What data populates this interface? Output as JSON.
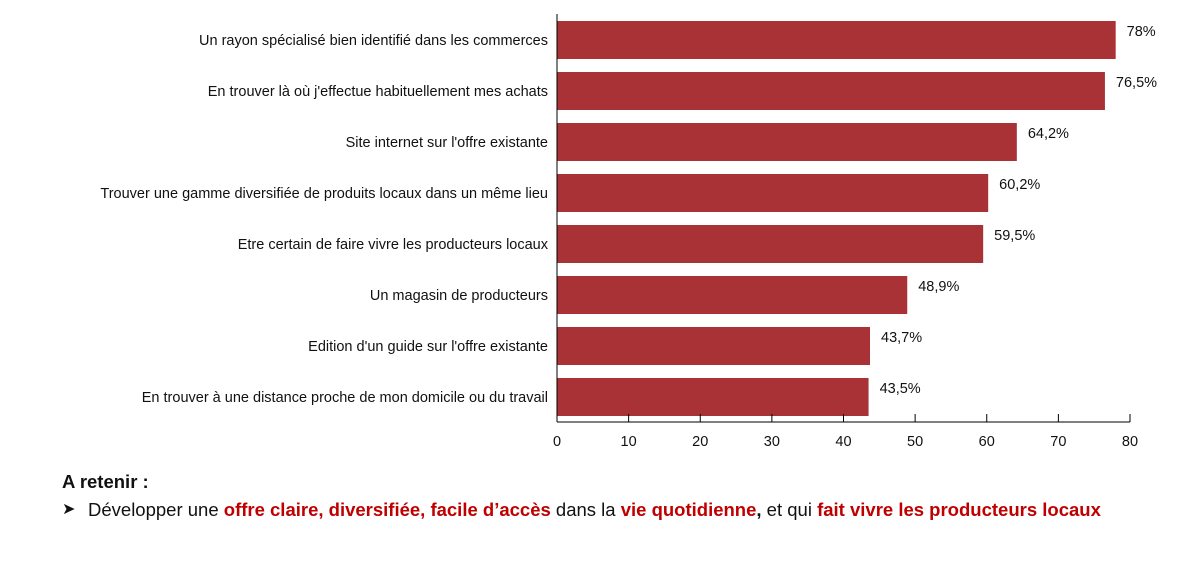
{
  "chart_data": {
    "type": "bar",
    "orientation": "horizontal",
    "bar_color": "#a83236",
    "categories": [
      "Un rayon spécialisé bien identifié dans les commerces",
      "En trouver là où j'effectue habituellement mes achats",
      "Site internet sur l'offre existante",
      "Trouver une gamme diversifiée de produits locaux dans un même lieu",
      "Etre certain de faire vivre les producteurs locaux",
      "Un magasin de producteurs",
      "Edition d'un guide sur l'offre existante",
      "En trouver à une distance proche de mon domicile ou du travail"
    ],
    "values": [
      78,
      76.5,
      64.2,
      60.2,
      59.5,
      48.9,
      43.7,
      43.5
    ],
    "value_labels": [
      "78%",
      "76,5%",
      "64,2%",
      "60,2%",
      "59,5%",
      "48,9%",
      "43,7%",
      "43,5%"
    ],
    "xlim": [
      0,
      80
    ],
    "xticks": [
      0,
      10,
      20,
      30,
      40,
      50,
      60,
      70,
      80
    ],
    "grid": false
  },
  "note": {
    "title": "A retenir :",
    "p1": "Développer une ",
    "hl1": "offre claire, diversifiée, facile d’accès",
    "p2": " dans la ",
    "hl2": "vie quotidienne",
    "p3": ",",
    "p4": " et qui ",
    "hl3": "fait vivre les producteurs locaux",
    "accent_color": "#c00000"
  }
}
